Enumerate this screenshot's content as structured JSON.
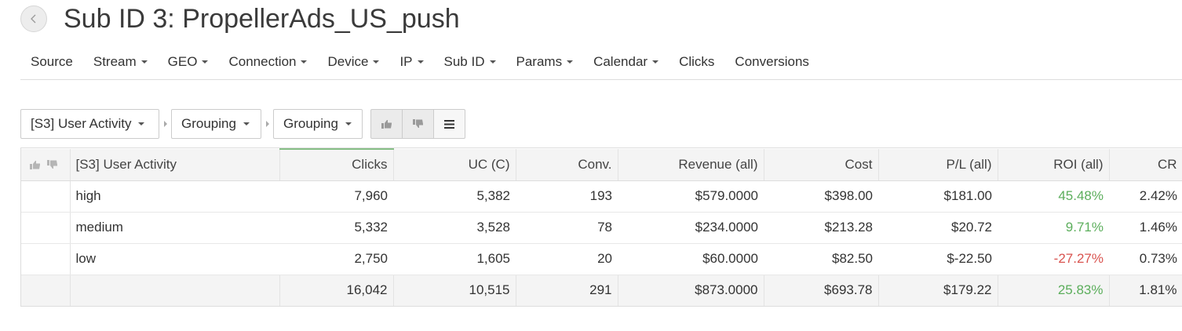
{
  "header": {
    "title": "Sub ID 3: PropellerAds_US_push",
    "back_icon": "chevron-left-icon"
  },
  "nav": {
    "items": [
      {
        "label": "Source",
        "dropdown": false
      },
      {
        "label": "Stream",
        "dropdown": true
      },
      {
        "label": "GEO",
        "dropdown": true
      },
      {
        "label": "Connection",
        "dropdown": true
      },
      {
        "label": "Device",
        "dropdown": true
      },
      {
        "label": "IP",
        "dropdown": true
      },
      {
        "label": "Sub ID",
        "dropdown": true
      },
      {
        "label": "Params",
        "dropdown": true
      },
      {
        "label": "Calendar",
        "dropdown": true
      },
      {
        "label": "Clicks",
        "dropdown": false
      },
      {
        "label": "Conversions",
        "dropdown": false
      }
    ]
  },
  "toolbar": {
    "grouping_1": "[S3] User Activity",
    "grouping_2": "Grouping",
    "grouping_3": "Grouping",
    "buttons": [
      "thumbs-up-icon",
      "thumbs-down-icon",
      "list-icon"
    ]
  },
  "table": {
    "columns": [
      "[S3] User Activity",
      "Clicks",
      "UC (C)",
      "Conv.",
      "Revenue (all)",
      "Cost",
      "P/L (all)",
      "ROI (all)",
      "CR"
    ],
    "rows": [
      {
        "name": "high",
        "clicks": "7,960",
        "uc": "5,382",
        "conv": "193",
        "revenue": "$579.0000",
        "cost": "$398.00",
        "pl": "$181.00",
        "roi": "45.48%",
        "roi_sign": "pos",
        "cr": "2.42%"
      },
      {
        "name": "medium",
        "clicks": "5,332",
        "uc": "3,528",
        "conv": "78",
        "revenue": "$234.0000",
        "cost": "$213.28",
        "pl": "$20.72",
        "roi": "9.71%",
        "roi_sign": "pos",
        "cr": "1.46%"
      },
      {
        "name": "low",
        "clicks": "2,750",
        "uc": "1,605",
        "conv": "20",
        "revenue": "$60.0000",
        "cost": "$82.50",
        "pl": "$-22.50",
        "roi": "-27.27%",
        "roi_sign": "neg",
        "cr": "0.73%"
      }
    ],
    "totals": {
      "clicks": "16,042",
      "uc": "10,515",
      "conv": "291",
      "revenue": "$873.0000",
      "cost": "$693.78",
      "pl": "$179.22",
      "roi": "25.83%",
      "cr": "1.81%"
    }
  },
  "colors": {
    "positive": "#5cae5c",
    "negative": "#d9534f",
    "sorted_column_accent": "#86bf86"
  }
}
